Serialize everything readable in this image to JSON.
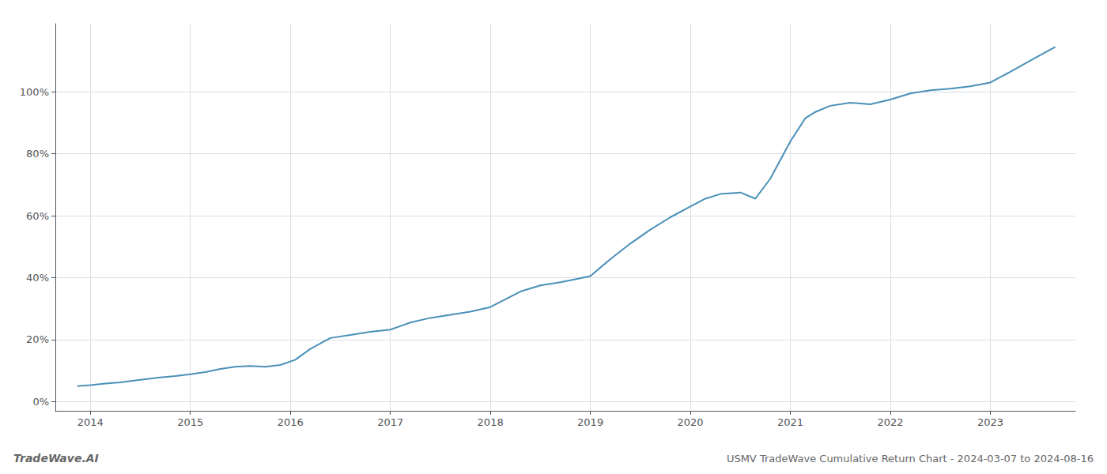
{
  "chart_data": {
    "type": "line",
    "title": "USMV TradeWave Cumulative Return Chart - 2024-03-07 to 2024-08-16",
    "annotations": [
      "TradeWave.AI"
    ],
    "x": [
      2013.87,
      2014.0,
      2014.15,
      2014.3,
      2014.5,
      2014.7,
      2014.85,
      2015.0,
      2015.15,
      2015.3,
      2015.45,
      2015.6,
      2015.75,
      2015.9,
      2016.05,
      2016.2,
      2016.4,
      2016.6,
      2016.8,
      2017.0,
      2017.2,
      2017.4,
      2017.6,
      2017.8,
      2018.0,
      2018.15,
      2018.3,
      2018.5,
      2018.7,
      2018.85,
      2019.0,
      2019.2,
      2019.4,
      2019.6,
      2019.8,
      2020.0,
      2020.15,
      2020.3,
      2020.5,
      2020.65,
      2020.8,
      2021.0,
      2021.15,
      2021.25,
      2021.4,
      2021.6,
      2021.8,
      2022.0,
      2022.2,
      2022.4,
      2022.6,
      2022.8,
      2023.0,
      2023.2,
      2023.45,
      2023.65
    ],
    "values": [
      5.0,
      5.3,
      5.8,
      6.2,
      7.0,
      7.8,
      8.2,
      8.8,
      9.5,
      10.5,
      11.2,
      11.5,
      11.2,
      11.8,
      13.5,
      17.0,
      20.5,
      21.5,
      22.5,
      23.2,
      25.5,
      27.0,
      28.0,
      29.0,
      30.5,
      33.0,
      35.5,
      37.5,
      38.5,
      39.5,
      40.5,
      46.0,
      51.0,
      55.5,
      59.5,
      63.0,
      65.5,
      67.0,
      67.5,
      65.5,
      72.0,
      84.0,
      91.5,
      93.5,
      95.5,
      96.5,
      96.0,
      97.5,
      99.5,
      100.5,
      101.0,
      101.8,
      103.0,
      106.5,
      111.0,
      114.5
    ],
    "color": "#4a90b8",
    "xlim": [
      2013.65,
      2023.85
    ],
    "xticks": [
      2014,
      2015,
      2016,
      2017,
      2018,
      2019,
      2020,
      2021,
      2022,
      2023
    ],
    "ylim": [
      -3,
      122
    ],
    "yticks": [
      {
        "value": 0,
        "label": "0%"
      },
      {
        "value": 20,
        "label": "20%"
      },
      {
        "value": 40,
        "label": "40%"
      },
      {
        "value": 60,
        "label": "60%"
      },
      {
        "value": 80,
        "label": "80%"
      },
      {
        "value": 100,
        "label": "100%"
      }
    ],
    "grid": true
  }
}
